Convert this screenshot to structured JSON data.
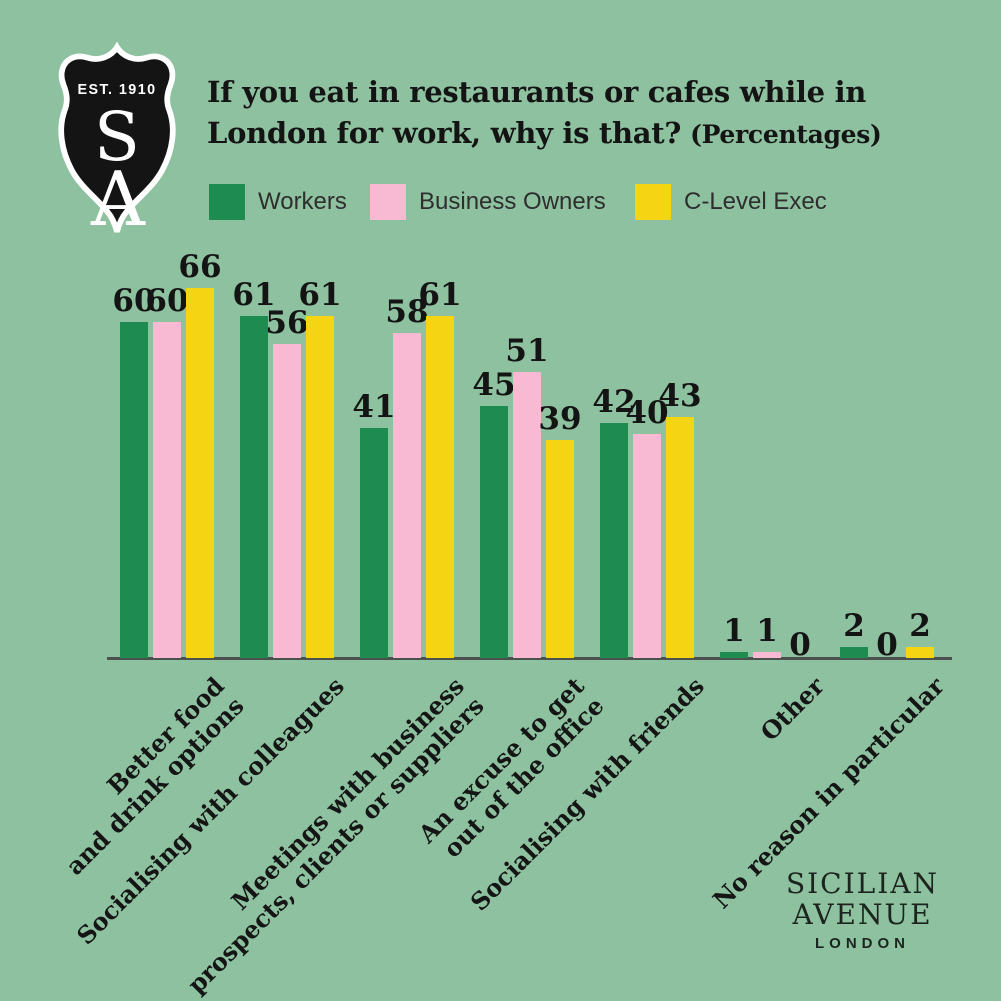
{
  "background_color": "#8dc19f",
  "logo": {
    "est": "EST. 1910",
    "letter_s": "S",
    "letter_a": "A",
    "badge_color": "#141414"
  },
  "title": {
    "line1": "If you eat in restaurants or cafes while in",
    "line2": "London for work, why is that?",
    "suffix": "(Percentages)"
  },
  "chart_data": {
    "type": "bar",
    "title": "If you eat in restaurants or cafes while in London for work, why is that? (Percentages)",
    "categories": [
      [
        "Better food",
        "and drink options"
      ],
      [
        "Socialising with colleagues"
      ],
      [
        "Meetings with business",
        "prospects, clients or suppliers"
      ],
      [
        "An excuse to get",
        "out of the office"
      ],
      [
        "Socialising with friends"
      ],
      [
        "Other"
      ],
      [
        "No reason in particular"
      ]
    ],
    "series": [
      {
        "name": "Workers",
        "color": "#1e8c50",
        "values": [
          60,
          61,
          41,
          45,
          42,
          1,
          2
        ]
      },
      {
        "name": "Business Owners",
        "color": "#f7bad2",
        "values": [
          60,
          56,
          58,
          51,
          40,
          1,
          0
        ]
      },
      {
        "name": "C-Level Exec",
        "color": "#f5d513",
        "values": [
          66,
          61,
          61,
          39,
          43,
          0,
          2
        ]
      }
    ],
    "value_labels": true,
    "ylim": [
      0,
      70
    ],
    "grid": false,
    "legend_position": "top",
    "axis_color": "#4c514d"
  },
  "footer": {
    "brand_line1": "SICILIAN",
    "brand_line2": "AVENUE",
    "brand_city": "LONDON"
  }
}
